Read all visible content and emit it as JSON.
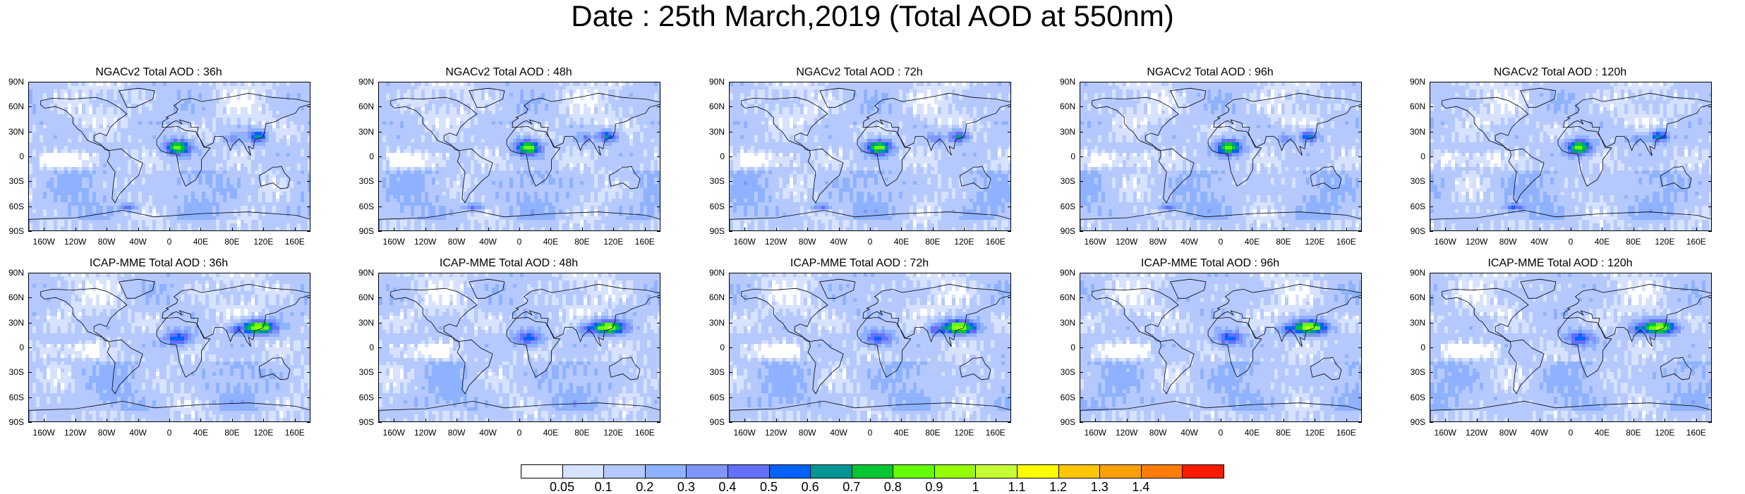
{
  "title": "Date : 25th March,2019 (Total AOD at 550nm)",
  "lat_labels": [
    "90N",
    "60N",
    "30N",
    "0",
    "30S",
    "60S",
    "90S"
  ],
  "lon_labels": [
    "160W",
    "120W",
    "80W",
    "40W",
    "0",
    "40E",
    "80E",
    "120E",
    "160E"
  ],
  "panels": [
    {
      "title": "NGACv2 Total AOD : 36h",
      "model": "NGACv2",
      "hour": 36
    },
    {
      "title": "NGACv2 Total AOD : 48h",
      "model": "NGACv2",
      "hour": 48
    },
    {
      "title": "NGACv2 Total AOD : 72h",
      "model": "NGACv2",
      "hour": 72
    },
    {
      "title": "NGACv2 Total AOD : 96h",
      "model": "NGACv2",
      "hour": 96
    },
    {
      "title": "NGACv2 Total AOD : 120h",
      "model": "NGACv2",
      "hour": 120
    },
    {
      "title": "ICAP-MME Total AOD : 36h",
      "model": "ICAP-MME",
      "hour": 36
    },
    {
      "title": "ICAP-MME Total AOD : 48h",
      "model": "ICAP-MME",
      "hour": 48
    },
    {
      "title": "ICAP-MME Total AOD : 72h",
      "model": "ICAP-MME",
      "hour": 72
    },
    {
      "title": "ICAP-MME Total AOD : 96h",
      "model": "ICAP-MME",
      "hour": 96
    },
    {
      "title": "ICAP-MME Total AOD : 120h",
      "model": "ICAP-MME",
      "hour": 120
    }
  ],
  "colorbar": {
    "labels": [
      "0.05",
      "0.1",
      "0.2",
      "0.3",
      "0.4",
      "0.5",
      "0.6",
      "0.7",
      "0.8",
      "0.9",
      "1",
      "1.1",
      "1.2",
      "1.3",
      "1.4"
    ],
    "colors": [
      "#ffffff",
      "#d6e2ff",
      "#b5c9ff",
      "#8eb2ff",
      "#7f96ff",
      "#6370ff",
      "#0063ff",
      "#009696",
      "#00c633",
      "#63ff00",
      "#96ff00",
      "#c6ff33",
      "#ffff00",
      "#ffc600",
      "#ffa000",
      "#ff7c00",
      "#ff1900"
    ]
  }
}
